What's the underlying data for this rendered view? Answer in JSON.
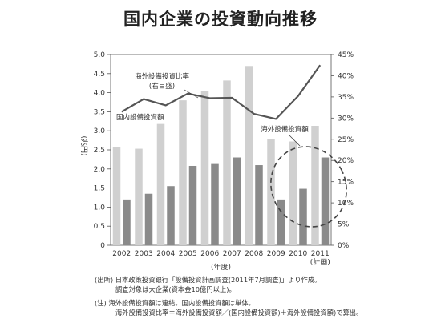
{
  "title": "国内企業の投資動向推移",
  "chart_data": {
    "type": "bar+line",
    "categories": [
      "2002",
      "2003",
      "2004",
      "2005",
      "2006",
      "2007",
      "2008",
      "2009",
      "2010",
      "2011"
    ],
    "category_sublabels": [
      "",
      "",
      "",
      "",
      "",
      "",
      "",
      "",
      "",
      "(計画)"
    ],
    "xlabel": "(年度)",
    "ylabel": "(兆円)",
    "ylim": [
      0,
      5.0
    ],
    "y_ticks": [
      "0",
      "0.5",
      "1.0",
      "1.5",
      "2.0",
      "2.5",
      "3.0",
      "3.5",
      "4.0",
      "4.5",
      "5.0"
    ],
    "y2lim": [
      0,
      45
    ],
    "y2_ticks": [
      "0%",
      "5%",
      "10%",
      "15%",
      "20%",
      "25%",
      "30%",
      "35%",
      "40%",
      "45%"
    ],
    "series": [
      {
        "name": "国内設備投資額",
        "type": "bar",
        "axis": "left",
        "color": "#d0d0d0",
        "values": [
          2.57,
          2.53,
          3.18,
          3.8,
          4.05,
          4.32,
          4.7,
          2.78,
          2.72,
          3.13
        ]
      },
      {
        "name": "海外設備投資額",
        "type": "bar",
        "axis": "left",
        "color": "#8a8a8a",
        "values": [
          1.2,
          1.35,
          1.55,
          2.08,
          2.13,
          2.3,
          2.1,
          1.2,
          1.48,
          2.3
        ]
      },
      {
        "name": "海外設備投資比率",
        "legend_sub": "(右目盛)",
        "type": "line",
        "axis": "right",
        "color": "#555555",
        "values": [
          31.5,
          34.5,
          33.0,
          35.8,
          34.7,
          34.8,
          31.0,
          29.8,
          35.2,
          42.5
        ]
      }
    ],
    "grid": false,
    "highlight": "dashed ellipse around 2009–2011 overseas investment bars"
  },
  "notes": [
    "(出所) 日本政策投資銀行「設備投資計画調査(2011年7月調査)」より作成。",
    "調査対象は大企業(資本金10億円以上)。",
    "(注) 海外設備投資額は連結。国内設備投資額は単体。",
    "海外設備投資比率＝海外設備投資額／(国内設備投資額)＋海外設備投資額)で算出。"
  ]
}
